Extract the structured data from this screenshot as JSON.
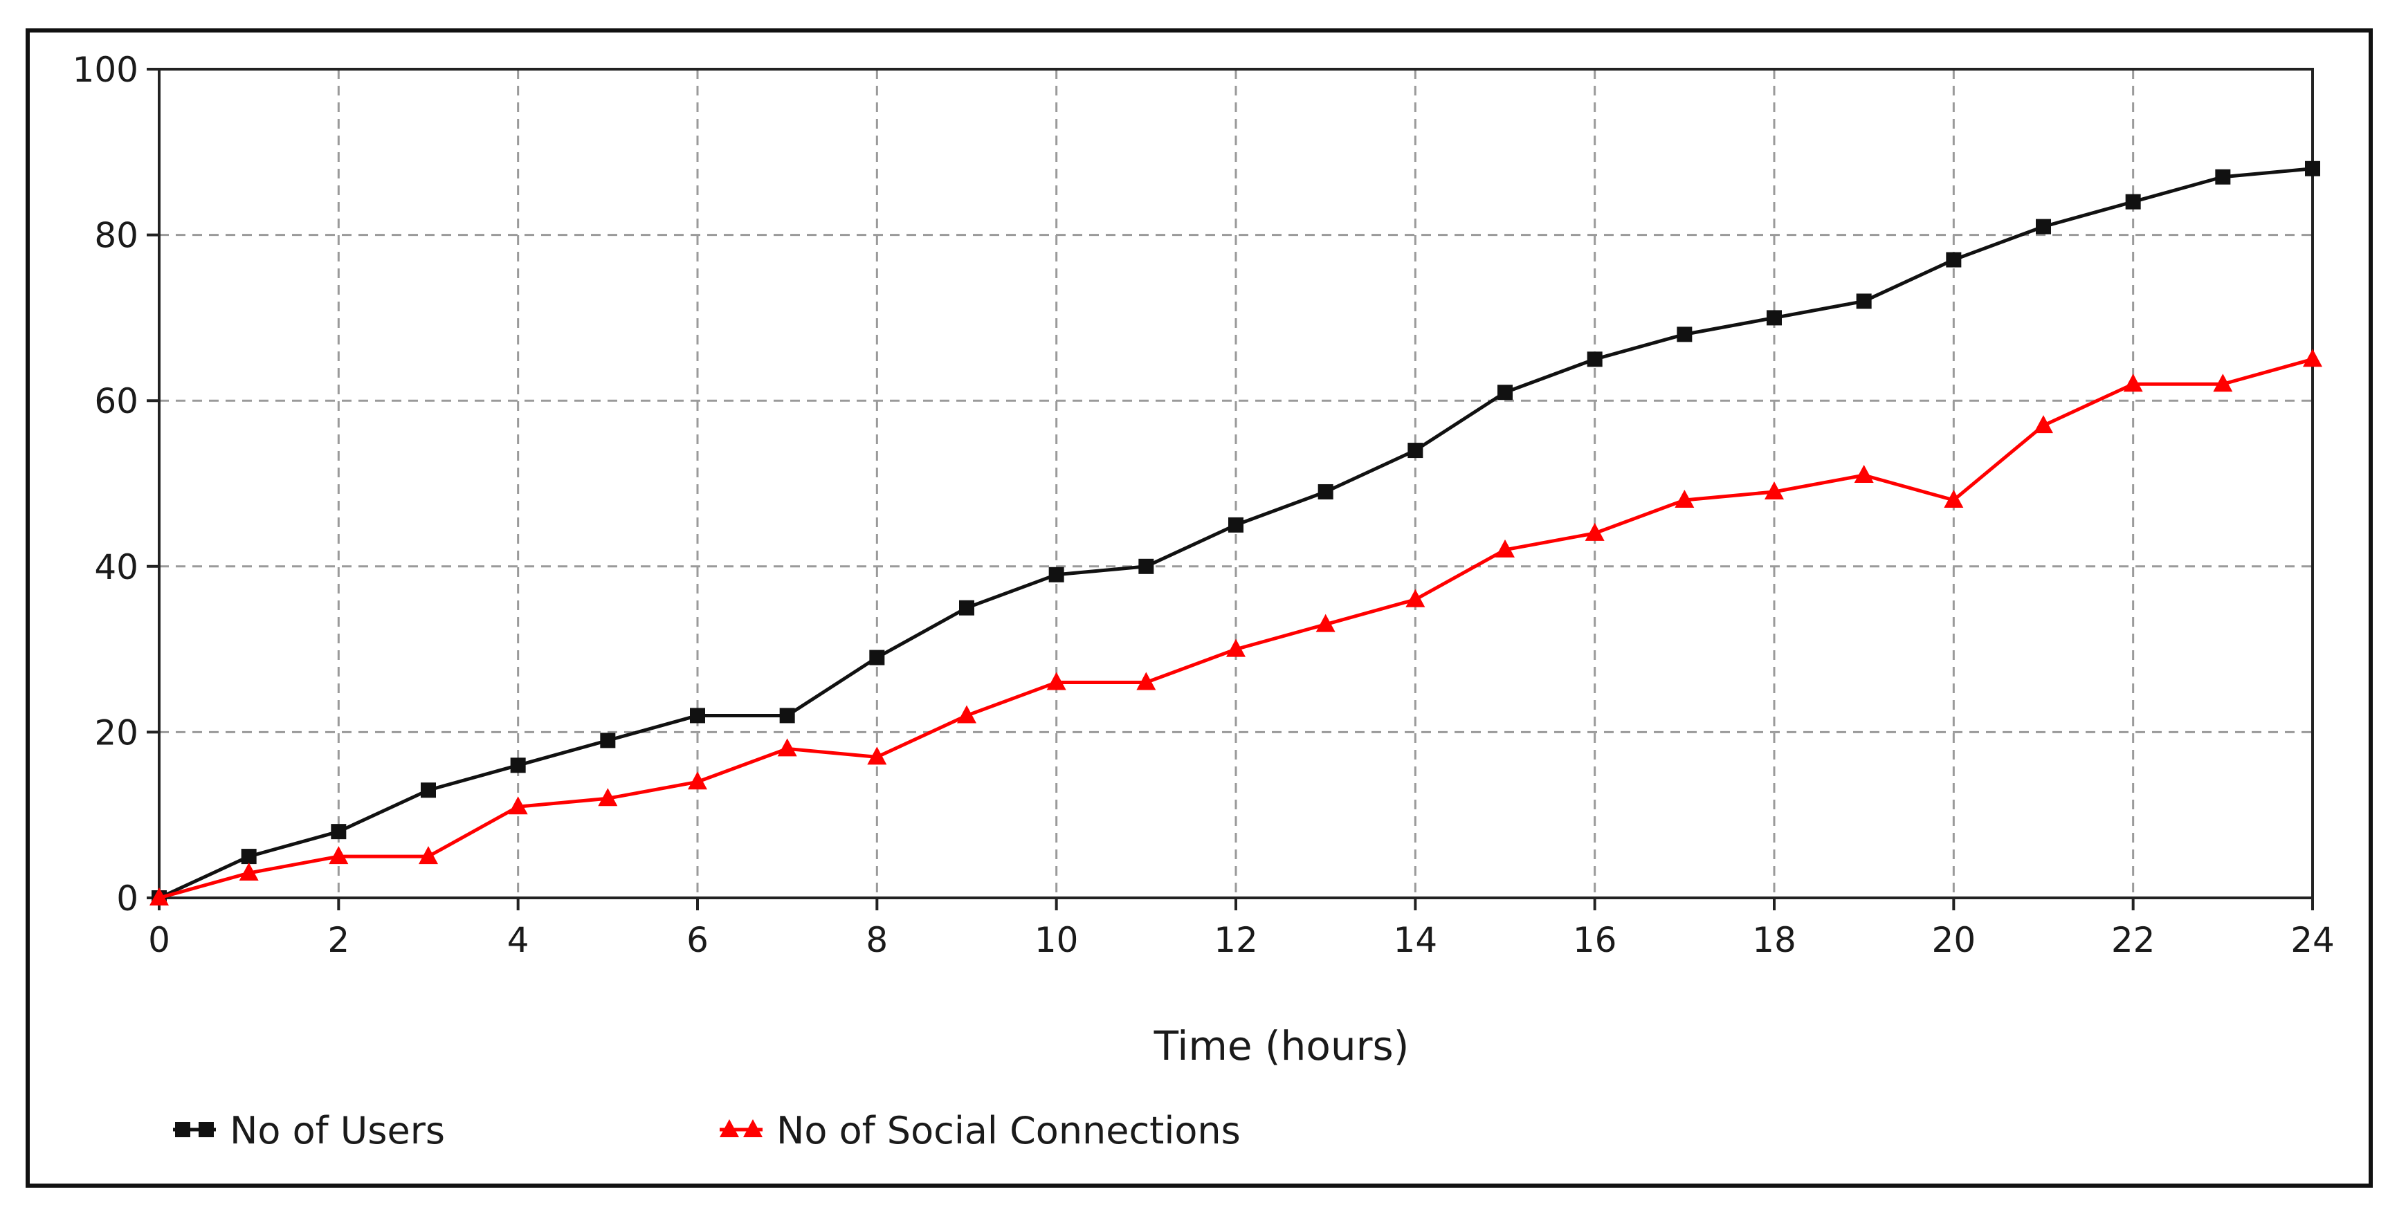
{
  "chart_data": {
    "type": "line",
    "title": "",
    "xlabel": "Time (hours)",
    "ylabel": "",
    "xlim": [
      0,
      24
    ],
    "ylim": [
      0,
      100
    ],
    "x_ticks": [
      0,
      2,
      4,
      6,
      8,
      10,
      12,
      14,
      16,
      18,
      20,
      22,
      24
    ],
    "y_ticks": [
      0,
      20,
      40,
      60,
      80,
      100
    ],
    "grid": true,
    "grid_style": "dashed",
    "legend_position": "bottom-left",
    "x": [
      0,
      1,
      2,
      3,
      4,
      5,
      6,
      7,
      8,
      9,
      10,
      11,
      12,
      13,
      14,
      15,
      16,
      17,
      18,
      19,
      20,
      21,
      22,
      23,
      24
    ],
    "series": [
      {
        "name": "No of Users",
        "color": "#111111",
        "marker": "square",
        "values": [
          0,
          5,
          8,
          13,
          16,
          19,
          22,
          22,
          29,
          35,
          39,
          40,
          45,
          49,
          54,
          61,
          65,
          68,
          70,
          72,
          77,
          81,
          84,
          87,
          88
        ]
      },
      {
        "name": "No of Social Connections",
        "color": "#ff0000",
        "marker": "triangle",
        "values": [
          0,
          3,
          5,
          5,
          11,
          12,
          14,
          18,
          17,
          22,
          26,
          26,
          30,
          33,
          36,
          42,
          44,
          48,
          49,
          51,
          48,
          57,
          62,
          62,
          65
        ]
      }
    ]
  }
}
